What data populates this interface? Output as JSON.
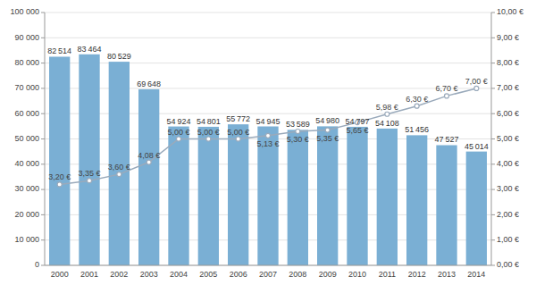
{
  "chart_data": {
    "type": "bar",
    "categories": [
      "2000",
      "2001",
      "2002",
      "2003",
      "2004",
      "2005",
      "2006",
      "2007",
      "2008",
      "2009",
      "2010",
      "2011",
      "2012",
      "2013",
      "2014"
    ],
    "series": [
      {
        "type": "bar",
        "color": "#7aafd4",
        "data_labels": true,
        "values": [
          82514,
          83464,
          80529,
          69648,
          54924,
          54801,
          55772,
          54945,
          53589,
          54980,
          54797,
          54108,
          51456,
          47527,
          45014
        ],
        "value_labels": [
          "82 514",
          "83 464",
          "80 529",
          "69 648",
          "54 924",
          "54 801",
          "55 772",
          "54 945",
          "53 589",
          "54 980",
          "54 797",
          "54 108",
          "51 456",
          "47 527",
          "45 014"
        ]
      },
      {
        "type": "line",
        "axis": "y2",
        "color": "#9AAABB",
        "marker": "circle",
        "data_labels": true,
        "values": [
          3.2,
          3.35,
          3.6,
          4.08,
          5.0,
          5.0,
          5.0,
          5.13,
          5.3,
          5.35,
          5.65,
          5.98,
          6.3,
          6.7,
          7.0
        ],
        "value_labels": [
          "3,20 €",
          "3,35 €",
          "3,60 €",
          "4,08 €",
          "5,00 €",
          "5,00 €",
          "5,00 €",
          "5,13 €",
          "5,30 €",
          "5,35 €",
          "5,65 €",
          "5,98 €",
          "6,30 €",
          "6,70 €",
          "7,00 €"
        ]
      }
    ],
    "ylim": [
      0,
      100000
    ],
    "yticks": [
      0,
      {
        "value": 10000,
        "label": "10 000"
      },
      {
        "value": 20000,
        "label": "20 000"
      },
      {
        "value": 30000,
        "label": "30 000"
      },
      {
        "value": 40000,
        "label": "40 000"
      },
      {
        "value": 50000,
        "label": "50 000"
      },
      {
        "value": 60000,
        "label": "60 000"
      },
      {
        "value": 70000,
        "label": "70 000"
      },
      {
        "value": 80000,
        "label": "80 000"
      },
      {
        "value": 90000,
        "label": "90 000"
      },
      {
        "value": 100000,
        "label": "100 000"
      }
    ],
    "y2lim": [
      0.0,
      10.0
    ],
    "y2ticks": [
      {
        "value": 0.0,
        "label": "0,00 €"
      },
      {
        "value": 1.0,
        "label": "1,00 €"
      },
      {
        "value": 2.0,
        "label": "2,00 €"
      },
      {
        "value": 3.0,
        "label": "3,00 €"
      },
      {
        "value": 4.0,
        "label": "4,00 €"
      },
      {
        "value": 5.0,
        "label": "5,00 €"
      },
      {
        "value": 6.0,
        "label": "6,00 €"
      },
      {
        "value": 7.0,
        "label": "7,00 €"
      },
      {
        "value": 8.0,
        "label": "8,00 €"
      },
      {
        "value": 9.0,
        "label": "9,00 €"
      },
      {
        "value": 10.0,
        "label": "10,00 €"
      }
    ],
    "grid": true
  }
}
